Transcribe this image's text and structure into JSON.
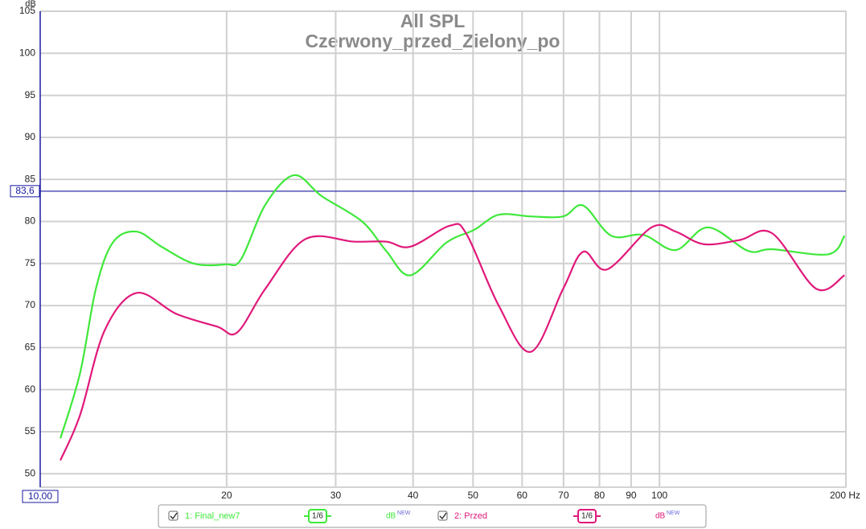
{
  "chart_data": {
    "type": "line",
    "title": "All SPL",
    "subtitle": "Czerwony_przed_Zielony_po",
    "y_label": "dB",
    "log_x": true,
    "grid": true,
    "xlim": [
      10,
      200
    ],
    "ylim": [
      48.4,
      105
    ],
    "xticks": [
      20,
      30,
      40,
      50,
      60,
      70,
      80,
      90,
      100,
      {
        "value": 200,
        "label": "200 Hz"
      }
    ],
    "yticks": [
      50,
      55,
      60,
      65,
      70,
      75,
      80,
      85,
      90,
      95,
      100,
      105
    ],
    "cursor_x": {
      "value": 10,
      "label": "10,00"
    },
    "cursor_y": {
      "value": 83.6,
      "label": "83,6"
    },
    "unit_label": "dB",
    "unit_badge": "NEW",
    "series": [
      {
        "name": "1: Final_new7",
        "color": "#3fe83a",
        "smoothing": "1/6",
        "x": [
          10.78,
          11.6,
          12.3,
          13.1,
          14.3,
          15.7,
          17.7,
          19.9,
          21.1,
          23.1,
          25.7,
          28.5,
          33.1,
          36.2,
          39.6,
          45.3,
          50.2,
          55.0,
          62.0,
          69.9,
          75.3,
          83.6,
          94.2,
          106.2,
          119.7,
          139.0,
          152.0,
          187.4,
          199.0
        ],
        "values": [
          54.2,
          62,
          72,
          77.5,
          78.8,
          77,
          75,
          74.9,
          75.5,
          82,
          85.5,
          83,
          80,
          76.5,
          73.6,
          77.5,
          79,
          80.8,
          80.6,
          80.6,
          81.9,
          78.3,
          78.4,
          76.6,
          79.3,
          76.5,
          76.7,
          76.1,
          78.3
        ]
      },
      {
        "name": "2: Przed",
        "color": "#e0187a",
        "smoothing": "1/6",
        "x": [
          10.78,
          11.6,
          12.7,
          14.3,
          16.6,
          19.3,
          20.8,
          23.1,
          26.8,
          32.1,
          36.2,
          39.6,
          45.9,
          48.8,
          55.0,
          62.0,
          69.9,
          75.3,
          82.3,
          97.1,
          106.2,
          117.9,
          134.9,
          152.0,
          179.1,
          199.0
        ],
        "values": [
          51.6,
          57,
          67,
          71.5,
          69,
          67.5,
          66.8,
          72,
          77.9,
          77.6,
          77.6,
          77,
          79.5,
          78.5,
          70,
          64.5,
          72,
          76.4,
          74.3,
          79.3,
          78.8,
          77.3,
          77.8,
          78.6,
          72,
          73.6
        ]
      }
    ]
  }
}
